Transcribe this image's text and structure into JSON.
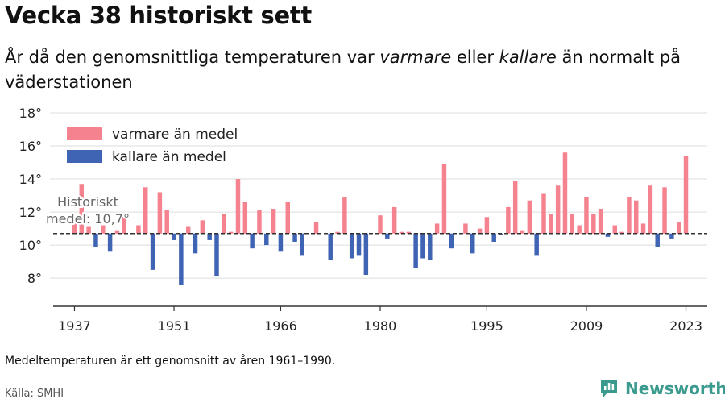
{
  "title": "Vecka 38 historiskt sett",
  "subtitle": {
    "part1": "År då den genomsnittliga temperaturen var ",
    "warmer": "varmare",
    "part2": " eller ",
    "colder": "kallare",
    "part3": " än normalt på väderstationen"
  },
  "note": "Medeltemperaturen är ett genomsnitt av åren 1961–1990.",
  "source": "Källa: SMHI",
  "brand": {
    "name": "Newsworthy",
    "icon": "newsworthy-logo-icon",
    "color": "#3a9a8e"
  },
  "colors": {
    "warm": "#f4838f",
    "cold": "#3f64b4",
    "mean_line": "#333333",
    "grid": "#dddddd"
  },
  "chart_data": {
    "type": "bar",
    "baseline": 10.7,
    "baseline_label": [
      "Historiskt",
      "medel: 10,7°"
    ],
    "ylim": [
      6.3,
      18
    ],
    "y_ticks": [
      8,
      10,
      12,
      14,
      16,
      18
    ],
    "y_tick_labels": [
      "8°",
      "10°",
      "12°",
      "14°",
      "16°",
      "18°"
    ],
    "x_tick_labels": [
      "1937",
      "1951",
      "1966",
      "1980",
      "1995",
      "2009",
      "2023"
    ],
    "xlim": [
      1934,
      2026
    ],
    "grid": true,
    "legend_position": "top-left",
    "legend": [
      {
        "label": "varmare än medel",
        "key": "warm"
      },
      {
        "label": "kallare än medel",
        "key": "cold"
      }
    ],
    "years": [
      1937,
      1938,
      1939,
      1940,
      1941,
      1942,
      1943,
      1944,
      1945,
      1946,
      1947,
      1948,
      1949,
      1950,
      1951,
      1952,
      1953,
      1954,
      1955,
      1956,
      1957,
      1958,
      1959,
      1960,
      1961,
      1962,
      1963,
      1964,
      1965,
      1966,
      1967,
      1968,
      1969,
      1970,
      1971,
      1972,
      1973,
      1974,
      1975,
      1976,
      1977,
      1978,
      1979,
      1980,
      1981,
      1982,
      1983,
      1984,
      1985,
      1986,
      1987,
      1988,
      1989,
      1990,
      1991,
      1992,
      1993,
      1994,
      1995,
      1996,
      1997,
      1998,
      1999,
      2000,
      2001,
      2002,
      2003,
      2004,
      2005,
      2006,
      2007,
      2008,
      2009,
      2010,
      2011,
      2012,
      2013,
      2014,
      2015,
      2016,
      2017,
      2018,
      2019,
      2020,
      2021,
      2022,
      2023
    ],
    "values": [
      11.3,
      13.7,
      11.1,
      9.9,
      11.2,
      9.6,
      10.9,
      11.9,
      10.7,
      11.2,
      13.5,
      8.5,
      13.2,
      12.1,
      10.3,
      7.6,
      11.1,
      9.5,
      11.5,
      10.3,
      8.1,
      11.9,
      10.8,
      14.0,
      12.6,
      9.8,
      12.1,
      10.0,
      12.2,
      9.6,
      12.6,
      10.2,
      9.4,
      10.7,
      11.4,
      10.7,
      9.1,
      10.8,
      12.9,
      9.2,
      9.4,
      8.2,
      10.7,
      11.8,
      10.4,
      12.3,
      10.8,
      10.8,
      8.6,
      9.2,
      9.1,
      11.3,
      14.9,
      9.8,
      10.7,
      11.3,
      9.5,
      11.0,
      11.7,
      10.2,
      10.6,
      12.3,
      13.9,
      10.9,
      12.7,
      9.4,
      13.1,
      11.9,
      13.6,
      15.6,
      11.9,
      11.2,
      12.9,
      11.9,
      12.2,
      10.5,
      11.2,
      10.8,
      12.9,
      12.7,
      11.3,
      13.6,
      9.9,
      13.5,
      10.4,
      11.4,
      15.4
    ]
  }
}
